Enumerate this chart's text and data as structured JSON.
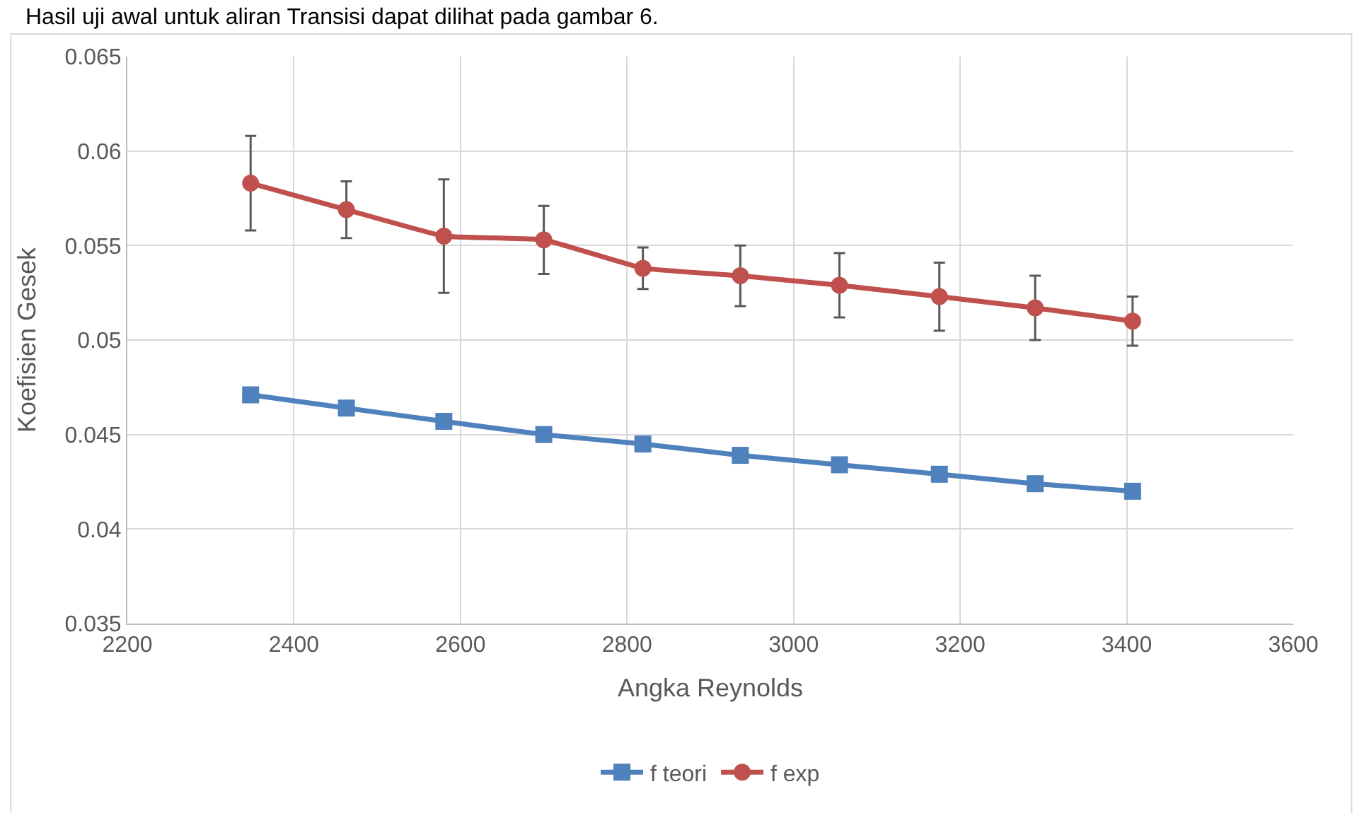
{
  "chart_data": {
    "type": "line",
    "xlabel": "Angka Reynolds",
    "ylabel": "Koefisien Gesek",
    "annotations": [
      "Hasil uji awal untuk aliran Transisi dapat dilihat pada gambar 6."
    ],
    "series": [
      {
        "name": "f teori",
        "color": "#4f81bd",
        "marker": "square",
        "x": [
          2348,
          2463,
          2580,
          2700,
          2819,
          2936,
          3055,
          3175,
          3290,
          3407
        ],
        "values": [
          0.0471,
          0.0464,
          0.0457,
          0.045,
          0.0445,
          0.0439,
          0.0434,
          0.0429,
          0.0424,
          0.042
        ]
      },
      {
        "name": "f exp",
        "color": "#c0504d",
        "marker": "circle",
        "x": [
          2348,
          2463,
          2580,
          2700,
          2819,
          2936,
          3055,
          3175,
          3290,
          3407
        ],
        "values": [
          0.0583,
          0.0569,
          0.0555,
          0.0553,
          0.0538,
          0.0534,
          0.0529,
          0.0523,
          0.0517,
          0.051
        ],
        "errors": [
          0.0025,
          0.0015,
          0.003,
          0.0018,
          0.0011,
          0.0016,
          0.0017,
          0.0018,
          0.0017,
          0.0013
        ]
      }
    ],
    "xlim": [
      2200,
      3600
    ],
    "xticks": [
      2200,
      2400,
      2600,
      2800,
      3000,
      3200,
      3400,
      3600
    ],
    "ylim": [
      0.035,
      0.065
    ],
    "yticks": [
      0.035,
      0.04,
      0.045,
      0.05,
      0.055,
      0.06,
      0.065
    ],
    "grid": true,
    "legend": "bottom",
    "line_style": "solid"
  }
}
